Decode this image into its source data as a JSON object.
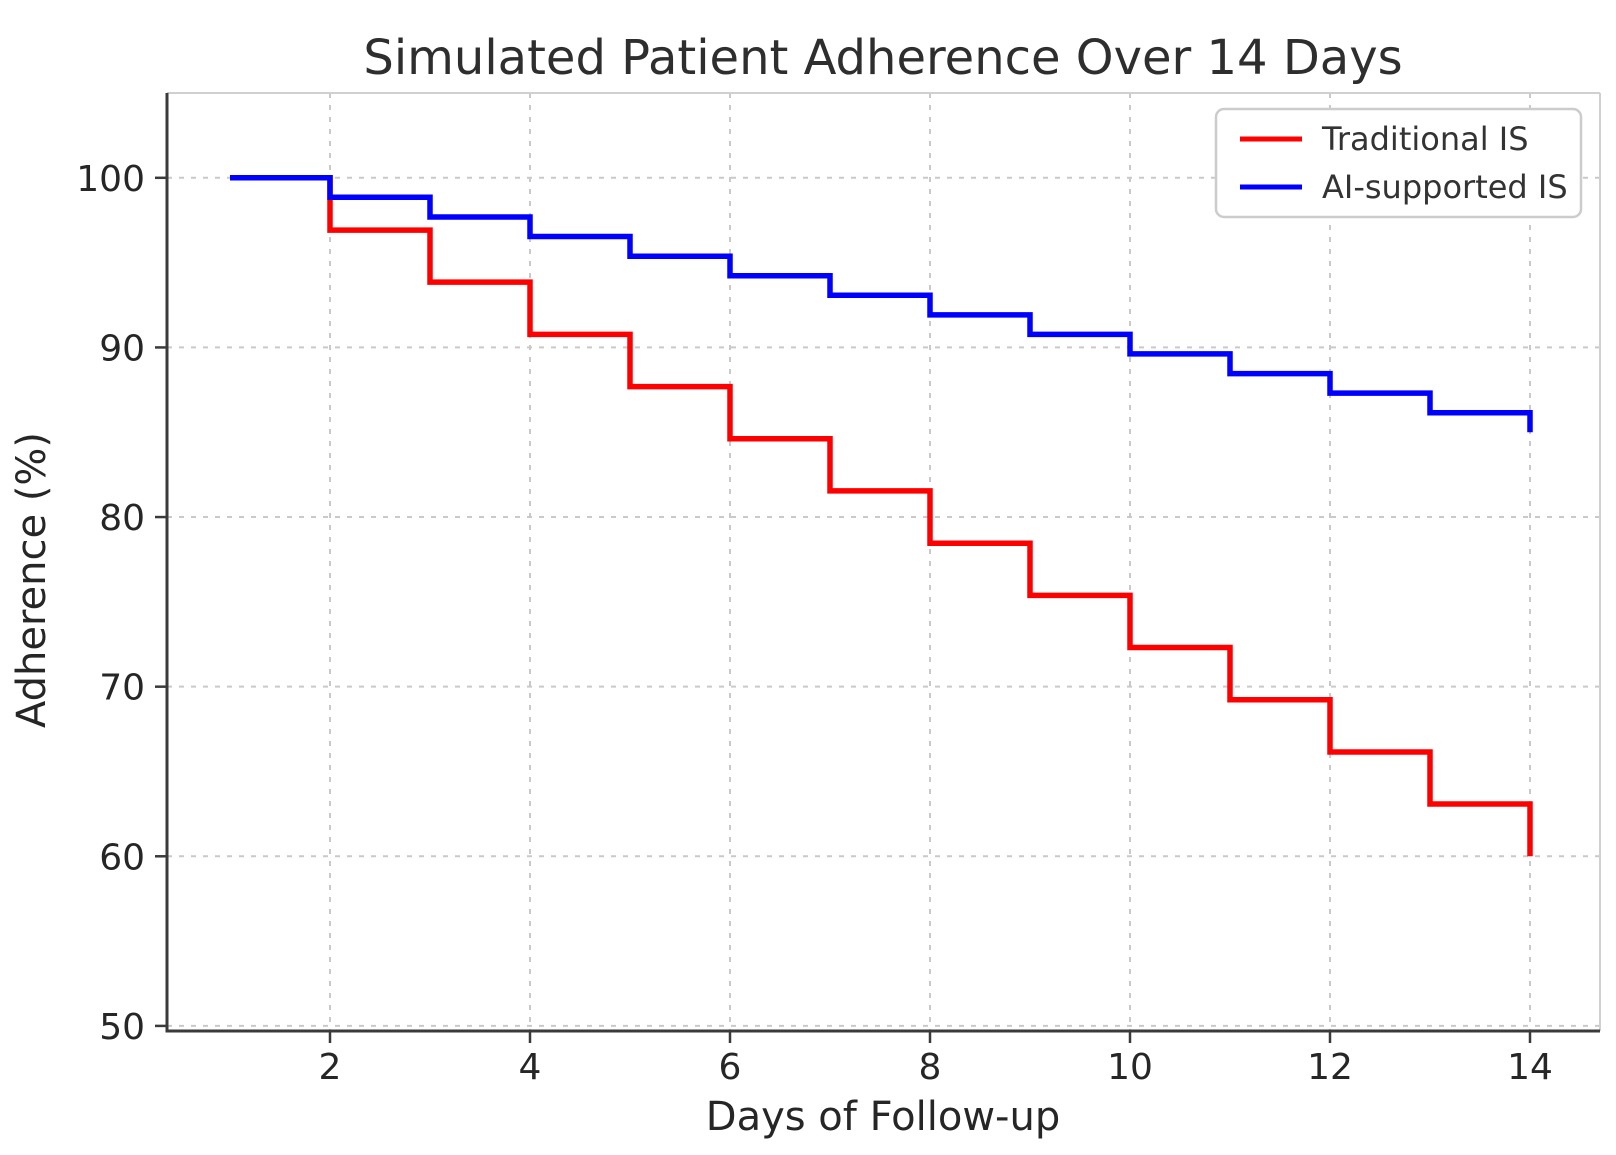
{
  "chart_data": {
    "type": "step",
    "step_where": "post",
    "title": "Simulated Patient Adherence Over 14 Days",
    "xlabel": "Days of Follow-up",
    "ylabel": "Adherence (%)",
    "x": [
      1,
      2,
      3,
      4,
      5,
      6,
      7,
      8,
      9,
      10,
      11,
      12,
      13,
      14
    ],
    "series": [
      {
        "name": "Traditional IS",
        "color": "#ff0000",
        "values": [
          100,
          96.92,
          93.85,
          90.77,
          87.69,
          84.62,
          81.54,
          78.46,
          75.38,
          72.31,
          69.23,
          66.15,
          63.08,
          60.0
        ]
      },
      {
        "name": "AI-supported IS",
        "color": "#0000ff",
        "values": [
          100,
          98.85,
          97.69,
          96.54,
          95.38,
          94.23,
          93.08,
          91.92,
          90.77,
          89.62,
          88.46,
          87.31,
          86.15,
          85.0
        ]
      }
    ],
    "xticks": [
      2,
      4,
      6,
      8,
      10,
      12,
      14
    ],
    "yticks": [
      50,
      60,
      70,
      80,
      90,
      100
    ],
    "xlim": [
      0.37,
      14.7
    ],
    "ylim": [
      49.7,
      105.0
    ],
    "grid": true,
    "legend_position": "upper right"
  },
  "style": {
    "background": "#ffffff",
    "grid_color": "#c9c9c9",
    "spine_dark_color": "#3a3a3a",
    "spine_light_color": "#d0d0d0",
    "tick_color": "#3a3a3a",
    "text_color": "#262626",
    "legend_border_color": "#cccccc",
    "legend_background": "#ffffff"
  }
}
